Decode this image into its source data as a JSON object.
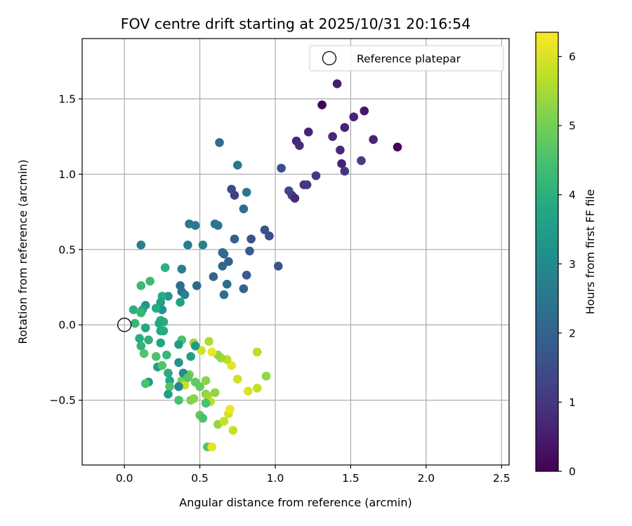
{
  "chart_data": {
    "type": "scatter",
    "title": "FOV centre drift starting at 2025/10/31 20:16:54",
    "xlabel": "Angular distance from reference (arcmin)",
    "ylabel": "Rotation from reference (arcmin)",
    "xlim": [
      -0.28,
      2.55
    ],
    "ylim": [
      -0.93,
      1.9
    ],
    "xticks": [
      0.0,
      0.5,
      1.0,
      1.5,
      2.0,
      2.5
    ],
    "xtick_labels": [
      "0.0",
      "0.5",
      "1.0",
      "1.5",
      "2.0",
      "2.5"
    ],
    "yticks": [
      -0.5,
      0.0,
      0.5,
      1.0,
      1.5
    ],
    "ytick_labels": [
      "−0.5",
      "0.0",
      "0.5",
      "1.0",
      "1.5"
    ],
    "grid": true,
    "legend": {
      "position": "top-right",
      "entries": [
        "Reference platepar"
      ]
    },
    "reference_point": {
      "x": 0.0,
      "y": 0.0
    },
    "colorbar": {
      "label": "Hours from first FF file",
      "range": [
        0,
        6.35
      ],
      "ticks": [
        0,
        1,
        2,
        3,
        4,
        5,
        6
      ],
      "tick_labels": [
        "0",
        "1",
        "2",
        "3",
        "4",
        "5",
        "6"
      ],
      "colormap": "viridis"
    },
    "points": [
      {
        "x": 1.31,
        "y": 1.46,
        "c": 0.05
      },
      {
        "x": 1.81,
        "y": 1.18,
        "c": 0.1
      },
      {
        "x": 1.59,
        "y": 1.42,
        "c": 0.4
      },
      {
        "x": 1.41,
        "y": 1.6,
        "c": 0.5
      },
      {
        "x": 1.52,
        "y": 1.38,
        "c": 0.6
      },
      {
        "x": 1.38,
        "y": 1.25,
        "c": 0.7
      },
      {
        "x": 1.46,
        "y": 1.31,
        "c": 0.6
      },
      {
        "x": 1.22,
        "y": 1.28,
        "c": 0.6
      },
      {
        "x": 1.14,
        "y": 1.22,
        "c": 0.7
      },
      {
        "x": 1.16,
        "y": 1.19,
        "c": 0.8
      },
      {
        "x": 1.43,
        "y": 1.16,
        "c": 0.7
      },
      {
        "x": 1.65,
        "y": 1.23,
        "c": 0.6
      },
      {
        "x": 1.44,
        "y": 1.07,
        "c": 0.6
      },
      {
        "x": 1.46,
        "y": 1.02,
        "c": 1.0
      },
      {
        "x": 1.57,
        "y": 1.09,
        "c": 1.2
      },
      {
        "x": 1.27,
        "y": 0.99,
        "c": 1.1
      },
      {
        "x": 1.19,
        "y": 0.93,
        "c": 1.0
      },
      {
        "x": 1.21,
        "y": 0.93,
        "c": 1.1
      },
      {
        "x": 1.09,
        "y": 0.89,
        "c": 1.4
      },
      {
        "x": 1.11,
        "y": 0.86,
        "c": 1.2
      },
      {
        "x": 1.13,
        "y": 0.84,
        "c": 0.8
      },
      {
        "x": 1.04,
        "y": 1.04,
        "c": 1.5
      },
      {
        "x": 0.71,
        "y": 0.9,
        "c": 1.4
      },
      {
        "x": 0.73,
        "y": 0.86,
        "c": 1.2
      },
      {
        "x": 0.81,
        "y": 0.88,
        "c": 2.5
      },
      {
        "x": 0.79,
        "y": 0.77,
        "c": 2.3
      },
      {
        "x": 0.75,
        "y": 1.06,
        "c": 2.6
      },
      {
        "x": 0.63,
        "y": 1.21,
        "c": 2.3
      },
      {
        "x": 0.93,
        "y": 0.63,
        "c": 1.6
      },
      {
        "x": 0.96,
        "y": 0.59,
        "c": 1.5
      },
      {
        "x": 0.84,
        "y": 0.57,
        "c": 1.6
      },
      {
        "x": 0.73,
        "y": 0.57,
        "c": 1.9
      },
      {
        "x": 0.83,
        "y": 0.49,
        "c": 1.8
      },
      {
        "x": 1.02,
        "y": 0.39,
        "c": 1.6
      },
      {
        "x": 0.81,
        "y": 0.33,
        "c": 1.8
      },
      {
        "x": 0.79,
        "y": 0.24,
        "c": 2.0
      },
      {
        "x": 0.69,
        "y": 0.42,
        "c": 2.0
      },
      {
        "x": 0.65,
        "y": 0.48,
        "c": 2.2
      },
      {
        "x": 0.66,
        "y": 0.47,
        "c": 2.2
      },
      {
        "x": 0.65,
        "y": 0.39,
        "c": 2.1
      },
      {
        "x": 0.59,
        "y": 0.32,
        "c": 2.0
      },
      {
        "x": 0.68,
        "y": 0.27,
        "c": 2.3
      },
      {
        "x": 0.66,
        "y": 0.2,
        "c": 2.4
      },
      {
        "x": 0.6,
        "y": 0.67,
        "c": 2.4
      },
      {
        "x": 0.62,
        "y": 0.66,
        "c": 2.5
      },
      {
        "x": 0.47,
        "y": 0.66,
        "c": 2.6
      },
      {
        "x": 0.43,
        "y": 0.67,
        "c": 2.6
      },
      {
        "x": 0.52,
        "y": 0.53,
        "c": 2.8
      },
      {
        "x": 0.42,
        "y": 0.53,
        "c": 2.6
      },
      {
        "x": 0.11,
        "y": 0.53,
        "c": 2.7
      },
      {
        "x": 0.48,
        "y": 0.26,
        "c": 2.1
      },
      {
        "x": 0.38,
        "y": 0.37,
        "c": 2.8
      },
      {
        "x": 0.37,
        "y": 0.26,
        "c": 2.2
      },
      {
        "x": 0.38,
        "y": 0.22,
        "c": 2.4
      },
      {
        "x": 0.4,
        "y": 0.2,
        "c": 2.8
      },
      {
        "x": 0.37,
        "y": 0.15,
        "c": 3.6
      },
      {
        "x": 0.27,
        "y": 0.38,
        "c": 4.0
      },
      {
        "x": 0.29,
        "y": 0.19,
        "c": 3.4
      },
      {
        "x": 0.25,
        "y": 0.19,
        "c": 3.9
      },
      {
        "x": 0.17,
        "y": 0.29,
        "c": 4.3
      },
      {
        "x": 0.11,
        "y": 0.26,
        "c": 4.3
      },
      {
        "x": 0.24,
        "y": 0.15,
        "c": 3.6
      },
      {
        "x": 0.25,
        "y": 0.1,
        "c": 3.2
      },
      {
        "x": 0.14,
        "y": 0.13,
        "c": 3.3
      },
      {
        "x": 0.12,
        "y": 0.1,
        "c": 3.7
      },
      {
        "x": 0.06,
        "y": 0.1,
        "c": 4.0
      },
      {
        "x": 0.11,
        "y": 0.08,
        "c": 4.2
      },
      {
        "x": 0.21,
        "y": 0.11,
        "c": 3.9
      },
      {
        "x": 0.24,
        "y": 0.03,
        "c": 4.0
      },
      {
        "x": 0.26,
        "y": 0.02,
        "c": 3.9
      },
      {
        "x": 0.23,
        "y": 0.01,
        "c": 3.8
      },
      {
        "x": 0.07,
        "y": 0.01,
        "c": 4.2
      },
      {
        "x": 0.14,
        "y": -0.02,
        "c": 3.8
      },
      {
        "x": 0.24,
        "y": -0.04,
        "c": 3.8
      },
      {
        "x": 0.26,
        "y": -0.04,
        "c": 3.9
      },
      {
        "x": 0.1,
        "y": -0.09,
        "c": 3.9
      },
      {
        "x": 0.16,
        "y": -0.1,
        "c": 4.0
      },
      {
        "x": 0.24,
        "y": -0.12,
        "c": 3.7
      },
      {
        "x": 0.11,
        "y": -0.14,
        "c": 4.1
      },
      {
        "x": 0.13,
        "y": -0.19,
        "c": 4.6
      },
      {
        "x": 0.21,
        "y": -0.21,
        "c": 4.5
      },
      {
        "x": 0.28,
        "y": -0.2,
        "c": 4.2
      },
      {
        "x": 0.22,
        "y": -0.28,
        "c": 3.5
      },
      {
        "x": 0.25,
        "y": -0.27,
        "c": 4.6
      },
      {
        "x": 0.29,
        "y": -0.32,
        "c": 3.9
      },
      {
        "x": 0.16,
        "y": -0.38,
        "c": 3.3
      },
      {
        "x": 0.14,
        "y": -0.39,
        "c": 4.5
      },
      {
        "x": 0.3,
        "y": -0.37,
        "c": 3.8
      },
      {
        "x": 0.3,
        "y": -0.41,
        "c": 4.6
      },
      {
        "x": 0.29,
        "y": -0.46,
        "c": 3.6
      },
      {
        "x": 0.36,
        "y": -0.5,
        "c": 4.5
      },
      {
        "x": 0.37,
        "y": -0.4,
        "c": 3.3
      },
      {
        "x": 0.38,
        "y": -0.37,
        "c": 5.0
      },
      {
        "x": 0.4,
        "y": -0.4,
        "c": 5.8
      },
      {
        "x": 0.43,
        "y": -0.33,
        "c": 5.0
      },
      {
        "x": 0.47,
        "y": -0.38,
        "c": 4.8
      },
      {
        "x": 0.44,
        "y": -0.5,
        "c": 5.1
      },
      {
        "x": 0.46,
        "y": -0.49,
        "c": 5.2
      },
      {
        "x": 0.5,
        "y": -0.41,
        "c": 4.8
      },
      {
        "x": 0.54,
        "y": -0.37,
        "c": 5.2
      },
      {
        "x": 0.54,
        "y": -0.46,
        "c": 5.1
      },
      {
        "x": 0.55,
        "y": -0.47,
        "c": 5.4
      },
      {
        "x": 0.57,
        "y": -0.51,
        "c": 5.7
      },
      {
        "x": 0.54,
        "y": -0.52,
        "c": 4.5
      },
      {
        "x": 0.5,
        "y": -0.6,
        "c": 4.8
      },
      {
        "x": 0.52,
        "y": -0.62,
        "c": 4.5
      },
      {
        "x": 0.6,
        "y": -0.45,
        "c": 5.3
      },
      {
        "x": 0.62,
        "y": -0.66,
        "c": 5.3
      },
      {
        "x": 0.55,
        "y": -0.81,
        "c": 4.6
      },
      {
        "x": 0.58,
        "y": -0.81,
        "c": 6.1
      },
      {
        "x": 0.66,
        "y": -0.64,
        "c": 5.8
      },
      {
        "x": 0.69,
        "y": -0.59,
        "c": 5.9
      },
      {
        "x": 0.7,
        "y": -0.56,
        "c": 6.2
      },
      {
        "x": 0.72,
        "y": -0.7,
        "c": 5.8
      },
      {
        "x": 0.75,
        "y": -0.36,
        "c": 5.9
      },
      {
        "x": 0.82,
        "y": -0.44,
        "c": 6.0
      },
      {
        "x": 0.88,
        "y": -0.42,
        "c": 5.8
      },
      {
        "x": 0.94,
        "y": -0.34,
        "c": 5.3
      },
      {
        "x": 0.88,
        "y": -0.18,
        "c": 5.7
      },
      {
        "x": 0.71,
        "y": -0.27,
        "c": 6.1
      },
      {
        "x": 0.68,
        "y": -0.23,
        "c": 5.7
      },
      {
        "x": 0.64,
        "y": -0.22,
        "c": 5.4
      },
      {
        "x": 0.62,
        "y": -0.2,
        "c": 5.3
      },
      {
        "x": 0.58,
        "y": -0.18,
        "c": 6.2
      },
      {
        "x": 0.56,
        "y": -0.11,
        "c": 5.6
      },
      {
        "x": 0.51,
        "y": -0.17,
        "c": 5.9
      },
      {
        "x": 0.46,
        "y": -0.12,
        "c": 5.4
      },
      {
        "x": 0.47,
        "y": -0.14,
        "c": 3.4
      },
      {
        "x": 0.44,
        "y": -0.21,
        "c": 3.6
      },
      {
        "x": 0.38,
        "y": -0.1,
        "c": 4.5
      },
      {
        "x": 0.36,
        "y": -0.13,
        "c": 3.5
      },
      {
        "x": 0.36,
        "y": -0.25,
        "c": 3.3
      },
      {
        "x": 0.39,
        "y": -0.32,
        "c": 3.1
      },
      {
        "x": 0.42,
        "y": -0.35,
        "c": 4.7
      },
      {
        "x": 0.36,
        "y": -0.41,
        "c": 2.9
      }
    ]
  }
}
